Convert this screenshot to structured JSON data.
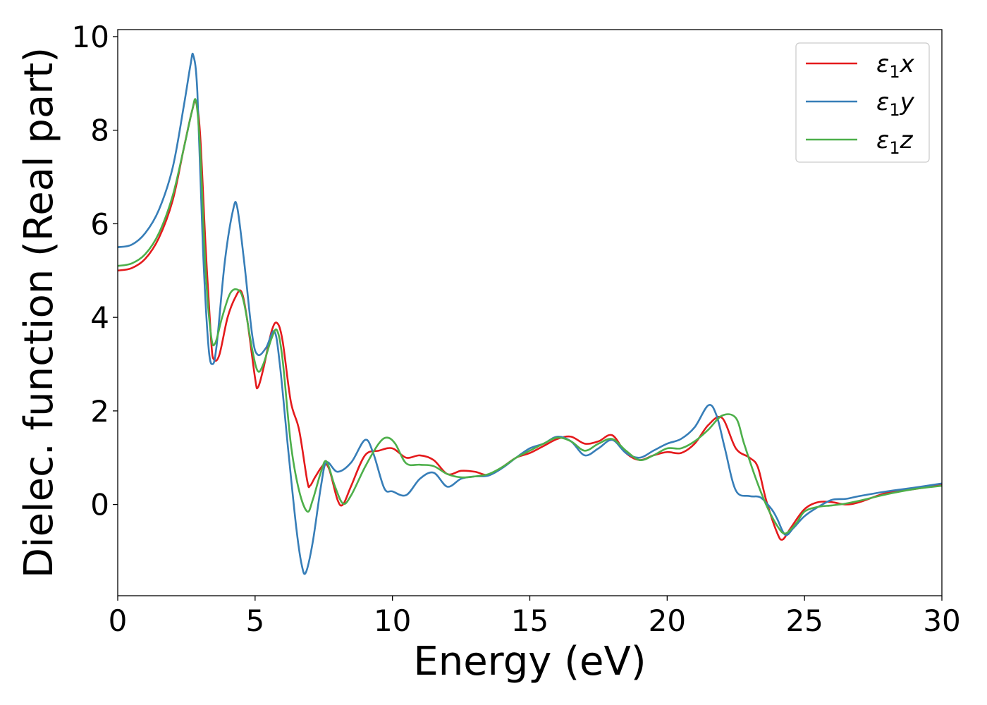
{
  "chart_data": {
    "type": "line",
    "xlabel": "Energy (eV)",
    "ylabel": "Dielec. function (Real part)",
    "xlim": [
      0,
      30
    ],
    "ylim": [
      -1.95,
      10.15
    ],
    "xticks": [
      0,
      5,
      10,
      15,
      20,
      25,
      30
    ],
    "yticks": [
      0,
      2,
      4,
      6,
      8,
      10
    ],
    "grid": false,
    "legend_position": "top-right",
    "series": [
      {
        "name": "ε₁x",
        "legend_main": "ε",
        "legend_sub": "1",
        "legend_suffix": "x",
        "color": "#e41a1c",
        "points": [
          [
            0,
            5.0
          ],
          [
            0.5,
            5.05
          ],
          [
            1.0,
            5.25
          ],
          [
            1.5,
            5.7
          ],
          [
            2.0,
            6.5
          ],
          [
            2.4,
            7.6
          ],
          [
            2.7,
            8.4
          ],
          [
            2.85,
            8.6
          ],
          [
            3.0,
            7.9
          ],
          [
            3.2,
            5.5
          ],
          [
            3.4,
            3.5
          ],
          [
            3.5,
            3.1
          ],
          [
            3.7,
            3.2
          ],
          [
            4.0,
            4.0
          ],
          [
            4.3,
            4.45
          ],
          [
            4.5,
            4.55
          ],
          [
            4.7,
            4.0
          ],
          [
            5.0,
            2.7
          ],
          [
            5.1,
            2.5
          ],
          [
            5.3,
            2.9
          ],
          [
            5.6,
            3.7
          ],
          [
            5.8,
            3.88
          ],
          [
            6.0,
            3.5
          ],
          [
            6.3,
            2.2
          ],
          [
            6.6,
            1.6
          ],
          [
            6.9,
            0.5
          ],
          [
            7.0,
            0.4
          ],
          [
            7.2,
            0.6
          ],
          [
            7.5,
            0.85
          ],
          [
            7.7,
            0.75
          ],
          [
            8.0,
            0.1
          ],
          [
            8.2,
            0.0
          ],
          [
            8.5,
            0.4
          ],
          [
            9.0,
            1.05
          ],
          [
            9.5,
            1.15
          ],
          [
            10.0,
            1.2
          ],
          [
            10.5,
            1.0
          ],
          [
            11.0,
            1.05
          ],
          [
            11.5,
            0.95
          ],
          [
            12.0,
            0.65
          ],
          [
            12.5,
            0.72
          ],
          [
            13.0,
            0.7
          ],
          [
            13.5,
            0.63
          ],
          [
            14.0,
            0.8
          ],
          [
            14.5,
            1.0
          ],
          [
            15.0,
            1.1
          ],
          [
            15.5,
            1.25
          ],
          [
            16.0,
            1.4
          ],
          [
            16.5,
            1.45
          ],
          [
            17.0,
            1.3
          ],
          [
            17.5,
            1.35
          ],
          [
            18.0,
            1.48
          ],
          [
            18.5,
            1.1
          ],
          [
            19.0,
            0.95
          ],
          [
            19.5,
            1.05
          ],
          [
            20.0,
            1.12
          ],
          [
            20.5,
            1.1
          ],
          [
            21.0,
            1.3
          ],
          [
            21.5,
            1.7
          ],
          [
            22.0,
            1.85
          ],
          [
            22.5,
            1.2
          ],
          [
            23.0,
            1.0
          ],
          [
            23.3,
            0.8
          ],
          [
            23.6,
            0.1
          ],
          [
            24.0,
            -0.6
          ],
          [
            24.2,
            -0.75
          ],
          [
            24.5,
            -0.5
          ],
          [
            25.0,
            -0.1
          ],
          [
            25.5,
            0.05
          ],
          [
            26.0,
            0.05
          ],
          [
            26.5,
            0.0
          ],
          [
            27.0,
            0.05
          ],
          [
            28.0,
            0.25
          ],
          [
            29.0,
            0.33
          ],
          [
            30.0,
            0.42
          ]
        ]
      },
      {
        "name": "ε₁y",
        "legend_main": "ε",
        "legend_sub": "1",
        "legend_suffix": "y",
        "color": "#377eb8",
        "points": [
          [
            0,
            5.5
          ],
          [
            0.5,
            5.55
          ],
          [
            1.0,
            5.8
          ],
          [
            1.5,
            6.3
          ],
          [
            2.0,
            7.2
          ],
          [
            2.4,
            8.5
          ],
          [
            2.65,
            9.4
          ],
          [
            2.75,
            9.6
          ],
          [
            2.9,
            8.8
          ],
          [
            3.1,
            5.5
          ],
          [
            3.3,
            3.4
          ],
          [
            3.45,
            3.0
          ],
          [
            3.6,
            3.4
          ],
          [
            3.9,
            5.2
          ],
          [
            4.2,
            6.3
          ],
          [
            4.35,
            6.35
          ],
          [
            4.6,
            5.2
          ],
          [
            4.9,
            3.6
          ],
          [
            5.1,
            3.2
          ],
          [
            5.4,
            3.35
          ],
          [
            5.7,
            3.7
          ],
          [
            5.9,
            3.0
          ],
          [
            6.2,
            1.2
          ],
          [
            6.5,
            -0.5
          ],
          [
            6.7,
            -1.3
          ],
          [
            6.85,
            -1.45
          ],
          [
            7.1,
            -0.8
          ],
          [
            7.4,
            0.4
          ],
          [
            7.6,
            0.9
          ],
          [
            8.0,
            0.7
          ],
          [
            8.5,
            0.9
          ],
          [
            9.0,
            1.38
          ],
          [
            9.3,
            1.1
          ],
          [
            9.7,
            0.35
          ],
          [
            10.0,
            0.28
          ],
          [
            10.5,
            0.2
          ],
          [
            11.0,
            0.55
          ],
          [
            11.5,
            0.68
          ],
          [
            12.0,
            0.38
          ],
          [
            12.5,
            0.55
          ],
          [
            13.0,
            0.6
          ],
          [
            13.5,
            0.62
          ],
          [
            14.0,
            0.78
          ],
          [
            14.5,
            1.0
          ],
          [
            15.0,
            1.2
          ],
          [
            15.5,
            1.3
          ],
          [
            16.0,
            1.45
          ],
          [
            16.5,
            1.35
          ],
          [
            17.0,
            1.05
          ],
          [
            17.5,
            1.2
          ],
          [
            18.0,
            1.38
          ],
          [
            18.5,
            1.1
          ],
          [
            19.0,
            1.0
          ],
          [
            19.5,
            1.15
          ],
          [
            20.0,
            1.3
          ],
          [
            20.5,
            1.4
          ],
          [
            21.0,
            1.65
          ],
          [
            21.5,
            2.12
          ],
          [
            21.8,
            1.9
          ],
          [
            22.1,
            1.2
          ],
          [
            22.5,
            0.3
          ],
          [
            23.0,
            0.18
          ],
          [
            23.4,
            0.15
          ],
          [
            23.8,
            -0.1
          ],
          [
            24.0,
            -0.3
          ],
          [
            24.3,
            -0.65
          ],
          [
            24.6,
            -0.5
          ],
          [
            25.0,
            -0.25
          ],
          [
            25.5,
            -0.05
          ],
          [
            26.0,
            0.1
          ],
          [
            26.5,
            0.12
          ],
          [
            27.0,
            0.18
          ],
          [
            28.0,
            0.28
          ],
          [
            29.0,
            0.36
          ],
          [
            30.0,
            0.45
          ]
        ]
      },
      {
        "name": "ε₁z",
        "legend_main": "ε",
        "legend_sub": "1",
        "legend_suffix": "z",
        "color": "#4daf4a",
        "points": [
          [
            0,
            5.1
          ],
          [
            0.5,
            5.15
          ],
          [
            1.0,
            5.35
          ],
          [
            1.5,
            5.8
          ],
          [
            2.0,
            6.6
          ],
          [
            2.4,
            7.6
          ],
          [
            2.7,
            8.4
          ],
          [
            2.85,
            8.62
          ],
          [
            3.0,
            7.6
          ],
          [
            3.2,
            5.0
          ],
          [
            3.4,
            3.6
          ],
          [
            3.55,
            3.45
          ],
          [
            3.8,
            4.0
          ],
          [
            4.1,
            4.52
          ],
          [
            4.4,
            4.58
          ],
          [
            4.6,
            4.3
          ],
          [
            4.9,
            3.3
          ],
          [
            5.1,
            2.85
          ],
          [
            5.3,
            3.0
          ],
          [
            5.6,
            3.55
          ],
          [
            5.8,
            3.72
          ],
          [
            6.0,
            3.1
          ],
          [
            6.3,
            1.3
          ],
          [
            6.6,
            0.3
          ],
          [
            6.9,
            -0.15
          ],
          [
            7.1,
            0.1
          ],
          [
            7.4,
            0.7
          ],
          [
            7.6,
            0.92
          ],
          [
            7.9,
            0.4
          ],
          [
            8.2,
            0.02
          ],
          [
            8.5,
            0.2
          ],
          [
            9.0,
            0.8
          ],
          [
            9.5,
            1.3
          ],
          [
            9.8,
            1.43
          ],
          [
            10.1,
            1.3
          ],
          [
            10.5,
            0.88
          ],
          [
            11.0,
            0.85
          ],
          [
            11.5,
            0.82
          ],
          [
            12.0,
            0.65
          ],
          [
            12.5,
            0.58
          ],
          [
            13.0,
            0.6
          ],
          [
            13.5,
            0.65
          ],
          [
            14.0,
            0.8
          ],
          [
            14.5,
            1.0
          ],
          [
            15.0,
            1.15
          ],
          [
            15.5,
            1.3
          ],
          [
            16.0,
            1.43
          ],
          [
            16.5,
            1.35
          ],
          [
            17.0,
            1.15
          ],
          [
            17.5,
            1.3
          ],
          [
            18.0,
            1.4
          ],
          [
            18.5,
            1.15
          ],
          [
            19.0,
            0.95
          ],
          [
            19.5,
            1.05
          ],
          [
            20.0,
            1.2
          ],
          [
            20.5,
            1.2
          ],
          [
            21.0,
            1.35
          ],
          [
            21.5,
            1.6
          ],
          [
            22.0,
            1.9
          ],
          [
            22.5,
            1.85
          ],
          [
            22.8,
            1.3
          ],
          [
            23.2,
            0.6
          ],
          [
            23.6,
            0.0
          ],
          [
            24.0,
            -0.45
          ],
          [
            24.3,
            -0.62
          ],
          [
            24.7,
            -0.4
          ],
          [
            25.0,
            -0.15
          ],
          [
            25.5,
            -0.05
          ],
          [
            26.0,
            -0.02
          ],
          [
            26.5,
            0.02
          ],
          [
            27.0,
            0.08
          ],
          [
            28.0,
            0.22
          ],
          [
            29.0,
            0.33
          ],
          [
            30.0,
            0.4
          ]
        ]
      }
    ]
  }
}
